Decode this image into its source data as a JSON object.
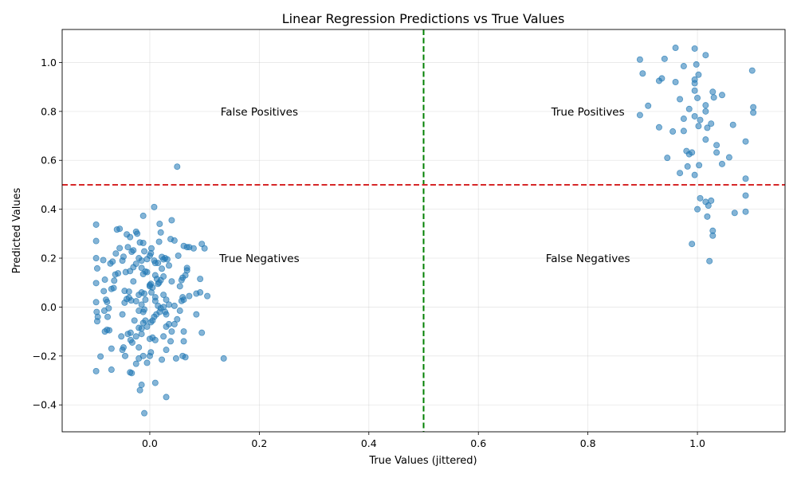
{
  "chart_data": {
    "type": "scatter",
    "title": "Linear Regression Predictions vs True Values",
    "xlabel": "True Values (jittered)",
    "ylabel": "Predicted Values",
    "xlim": [
      -0.16,
      1.16
    ],
    "ylim": [
      -0.51,
      1.135
    ],
    "xticks": [
      0.0,
      0.2,
      0.4,
      0.6,
      0.8,
      1.0
    ],
    "xtick_labels": [
      "0.0",
      "0.2",
      "0.4",
      "0.6",
      "0.8",
      "1.0"
    ],
    "yticks": [
      -0.4,
      -0.2,
      0.0,
      0.2,
      0.4,
      0.6,
      0.8,
      1.0
    ],
    "ytick_labels": [
      "−0.4",
      "−0.2",
      "0.0",
      "0.2",
      "0.4",
      "0.6",
      "0.8",
      "1.0"
    ],
    "grid": true,
    "point_color": "#1f77b4",
    "threshold_lines": [
      {
        "orientation": "vertical",
        "value": 0.5,
        "color": "#008000",
        "style": "dashed"
      },
      {
        "orientation": "horizontal",
        "value": 0.5,
        "color": "#d62728",
        "style": "dashed"
      }
    ],
    "annotations": [
      {
        "text": "False Positives",
        "x": 0.2,
        "y": 0.8
      },
      {
        "text": "True Positives",
        "x": 0.8,
        "y": 0.8
      },
      {
        "text": "True Negatives",
        "x": 0.2,
        "y": 0.2
      },
      {
        "text": "False Negatives",
        "x": 0.8,
        "y": 0.2
      }
    ],
    "points": [
      [
        -0.098,
        0.337
      ],
      [
        -0.098,
        0.27
      ],
      [
        -0.098,
        0.2
      ],
      [
        -0.096,
        0.158
      ],
      [
        -0.098,
        0.098
      ],
      [
        -0.098,
        0.02
      ],
      [
        -0.097,
        -0.02
      ],
      [
        -0.095,
        -0.04
      ],
      [
        -0.096,
        -0.058
      ],
      [
        -0.098,
        -0.262
      ],
      [
        -0.09,
        -0.202
      ],
      [
        -0.085,
        0.192
      ],
      [
        -0.082,
        0.112
      ],
      [
        -0.084,
        0.065
      ],
      [
        -0.08,
        0.03
      ],
      [
        -0.078,
        0.021
      ],
      [
        -0.083,
        -0.015
      ],
      [
        -0.075,
        -0.005
      ],
      [
        -0.077,
        -0.04
      ],
      [
        -0.082,
        -0.1
      ],
      [
        -0.078,
        -0.093
      ],
      [
        -0.074,
        -0.095
      ],
      [
        -0.07,
        -0.17
      ],
      [
        -0.07,
        -0.256
      ],
      [
        -0.07,
        0.074
      ],
      [
        -0.066,
        0.078
      ],
      [
        -0.072,
        0.178
      ],
      [
        -0.068,
        0.186
      ],
      [
        -0.06,
        0.317
      ],
      [
        -0.055,
        0.32
      ],
      [
        -0.058,
        0.138
      ],
      [
        -0.063,
        0.133
      ],
      [
        -0.065,
        0.108
      ],
      [
        -0.062,
        0.219
      ],
      [
        -0.055,
        0.241
      ],
      [
        -0.05,
        0.19
      ],
      [
        -0.048,
        0.206
      ],
      [
        -0.042,
        0.297
      ],
      [
        -0.036,
        0.286
      ],
      [
        -0.04,
        0.245
      ],
      [
        -0.033,
        0.226
      ],
      [
        -0.03,
        0.232
      ],
      [
        -0.044,
        0.143
      ],
      [
        -0.036,
        0.147
      ],
      [
        -0.03,
        0.163
      ],
      [
        -0.025,
        0.177
      ],
      [
        -0.03,
        0.105
      ],
      [
        -0.046,
        0.066
      ],
      [
        -0.038,
        0.063
      ],
      [
        -0.042,
        0.033
      ],
      [
        -0.046,
        0.018
      ],
      [
        -0.038,
        0.038
      ],
      [
        -0.034,
        0.027
      ],
      [
        -0.025,
        0.024
      ],
      [
        -0.05,
        -0.03
      ],
      [
        -0.04,
        -0.11
      ],
      [
        -0.035,
        -0.105
      ],
      [
        -0.028,
        -0.055
      ],
      [
        -0.035,
        -0.135
      ],
      [
        -0.032,
        -0.145
      ],
      [
        -0.052,
        -0.12
      ],
      [
        -0.048,
        -0.165
      ],
      [
        -0.05,
        -0.175
      ],
      [
        -0.045,
        -0.2
      ],
      [
        -0.036,
        -0.267
      ],
      [
        -0.033,
        -0.27
      ],
      [
        -0.025,
        -0.232
      ],
      [
        -0.02,
        -0.21
      ],
      [
        -0.018,
        -0.34
      ],
      [
        -0.015,
        -0.318
      ],
      [
        -0.01,
        -0.434
      ],
      [
        -0.012,
        0.373
      ],
      [
        -0.025,
        0.308
      ],
      [
        -0.023,
        0.3
      ],
      [
        -0.018,
        0.264
      ],
      [
        -0.012,
        0.262
      ],
      [
        -0.01,
        0.228
      ],
      [
        -0.005,
        0.196
      ],
      [
        -0.015,
        0.19
      ],
      [
        -0.02,
        0.2
      ],
      [
        -0.008,
        0.145
      ],
      [
        -0.012,
        0.135
      ],
      [
        -0.015,
        0.16
      ],
      [
        -0.005,
        0.143
      ],
      [
        0.0,
        0.085
      ],
      [
        0.002,
        0.095
      ],
      [
        -0.01,
        0.055
      ],
      [
        -0.015,
        0.06
      ],
      [
        -0.02,
        0.05
      ],
      [
        -0.008,
        0.03
      ],
      [
        -0.015,
        0.01
      ],
      [
        -0.02,
        -0.015
      ],
      [
        -0.012,
        -0.02
      ],
      [
        -0.01,
        -0.01
      ],
      [
        -0.02,
        -0.085
      ],
      [
        -0.015,
        -0.088
      ],
      [
        -0.012,
        -0.065
      ],
      [
        -0.008,
        -0.055
      ],
      [
        -0.005,
        -0.08
      ],
      [
        -0.025,
        -0.12
      ],
      [
        -0.015,
        -0.11
      ],
      [
        -0.02,
        -0.165
      ],
      [
        -0.012,
        -0.2
      ],
      [
        -0.005,
        -0.228
      ],
      [
        0.0,
        -0.2
      ],
      [
        0.002,
        -0.185
      ],
      [
        0.0,
        -0.13
      ],
      [
        0.005,
        -0.125
      ],
      [
        0.01,
        -0.135
      ],
      [
        0.01,
        -0.31
      ],
      [
        0.008,
        0.409
      ],
      [
        0.003,
        0.24
      ],
      [
        0.002,
        0.22
      ],
      [
        0.0,
        0.21
      ],
      [
        0.008,
        0.19
      ],
      [
        0.01,
        0.18
      ],
      [
        0.015,
        0.18
      ],
      [
        0.01,
        0.13
      ],
      [
        0.013,
        0.115
      ],
      [
        0.017,
        0.1
      ],
      [
        0.02,
        0.11
      ],
      [
        0.025,
        0.125
      ],
      [
        0.015,
        0.095
      ],
      [
        0.005,
        0.08
      ],
      [
        0.003,
        0.06
      ],
      [
        0.0,
        0.09
      ],
      [
        0.01,
        0.04
      ],
      [
        0.01,
        0.025
      ],
      [
        0.015,
        0.005
      ],
      [
        0.02,
        -0.005
      ],
      [
        0.025,
        0.0
      ],
      [
        0.018,
        -0.02
      ],
      [
        0.012,
        -0.03
      ],
      [
        0.008,
        -0.04
      ],
      [
        0.005,
        -0.055
      ],
      [
        0.002,
        -0.062
      ],
      [
        0.018,
        0.34
      ],
      [
        0.02,
        0.305
      ],
      [
        0.017,
        0.267
      ],
      [
        0.022,
        0.205
      ],
      [
        0.025,
        0.195
      ],
      [
        0.028,
        0.2
      ],
      [
        0.032,
        0.195
      ],
      [
        0.035,
        0.17
      ],
      [
        0.022,
        0.157
      ],
      [
        0.025,
        0.05
      ],
      [
        0.03,
        0.03
      ],
      [
        0.035,
        0.01
      ],
      [
        0.028,
        -0.02
      ],
      [
        0.03,
        -0.03
      ],
      [
        0.035,
        -0.07
      ],
      [
        0.03,
        -0.08
      ],
      [
        0.025,
        -0.12
      ],
      [
        0.03,
        -0.175
      ],
      [
        0.022,
        -0.215
      ],
      [
        0.03,
        -0.368
      ],
      [
        0.05,
        0.574
      ],
      [
        0.04,
        0.355
      ],
      [
        0.038,
        0.278
      ],
      [
        0.045,
        0.272
      ],
      [
        0.052,
        0.21
      ],
      [
        0.04,
        0.105
      ],
      [
        0.045,
        0.005
      ],
      [
        0.04,
        -0.1
      ],
      [
        0.038,
        -0.14
      ],
      [
        0.045,
        -0.07
      ],
      [
        0.05,
        -0.05
      ],
      [
        0.048,
        -0.21
      ],
      [
        0.055,
        -0.015
      ],
      [
        0.062,
        0.25
      ],
      [
        0.068,
        0.245
      ],
      [
        0.072,
        0.245
      ],
      [
        0.08,
        0.24
      ],
      [
        0.068,
        0.16
      ],
      [
        0.068,
        0.15
      ],
      [
        0.065,
        0.13
      ],
      [
        0.06,
        0.12
      ],
      [
        0.058,
        0.11
      ],
      [
        0.055,
        0.085
      ],
      [
        0.06,
        0.04
      ],
      [
        0.058,
        0.025
      ],
      [
        0.062,
        0.03
      ],
      [
        0.072,
        0.045
      ],
      [
        0.062,
        -0.1
      ],
      [
        0.062,
        -0.14
      ],
      [
        0.06,
        -0.2
      ],
      [
        0.065,
        -0.205
      ],
      [
        0.085,
        0.055
      ],
      [
        0.092,
        0.06
      ],
      [
        0.085,
        -0.03
      ],
      [
        0.092,
        0.115
      ],
      [
        0.1,
        0.24
      ],
      [
        0.095,
        0.258
      ],
      [
        0.105,
        0.045
      ],
      [
        0.095,
        -0.105
      ],
      [
        0.135,
        -0.21
      ],
      [
        0.895,
        1.012
      ],
      [
        0.9,
        0.955
      ],
      [
        0.94,
        1.015
      ],
      [
        0.96,
        1.06
      ],
      [
        0.995,
        1.057
      ],
      [
        1.015,
        1.03
      ],
      [
        0.998,
        0.992
      ],
      [
        0.975,
        0.985
      ],
      [
        1.1,
        0.967
      ],
      [
        0.93,
        0.925
      ],
      [
        0.935,
        0.935
      ],
      [
        0.96,
        0.92
      ],
      [
        0.995,
        0.93
      ],
      [
        0.995,
        0.915
      ],
      [
        1.002,
        0.95
      ],
      [
        0.995,
        0.885
      ],
      [
        1.028,
        0.88
      ],
      [
        1.03,
        0.857
      ],
      [
        1.045,
        0.867
      ],
      [
        0.968,
        0.85
      ],
      [
        1.0,
        0.855
      ],
      [
        1.015,
        0.825
      ],
      [
        1.102,
        0.817
      ],
      [
        0.91,
        0.823
      ],
      [
        0.895,
        0.785
      ],
      [
        0.985,
        0.81
      ],
      [
        1.015,
        0.8
      ],
      [
        0.995,
        0.78
      ],
      [
        1.005,
        0.765
      ],
      [
        0.975,
        0.77
      ],
      [
        1.102,
        0.795
      ],
      [
        0.93,
        0.735
      ],
      [
        0.955,
        0.718
      ],
      [
        0.975,
        0.72
      ],
      [
        1.002,
        0.74
      ],
      [
        1.018,
        0.733
      ],
      [
        1.025,
        0.75
      ],
      [
        1.065,
        0.745
      ],
      [
        1.015,
        0.685
      ],
      [
        1.088,
        0.677
      ],
      [
        1.035,
        0.662
      ],
      [
        0.98,
        0.638
      ],
      [
        0.99,
        0.632
      ],
      [
        0.985,
        0.625
      ],
      [
        1.035,
        0.632
      ],
      [
        1.058,
        0.612
      ],
      [
        0.945,
        0.61
      ],
      [
        0.982,
        0.575
      ],
      [
        1.003,
        0.58
      ],
      [
        1.045,
        0.585
      ],
      [
        0.968,
        0.548
      ],
      [
        0.995,
        0.54
      ],
      [
        1.088,
        0.525
      ],
      [
        1.088,
        0.456
      ],
      [
        1.005,
        0.445
      ],
      [
        1.015,
        0.43
      ],
      [
        1.025,
        0.435
      ],
      [
        1.02,
        0.415
      ],
      [
        1.0,
        0.4
      ],
      [
        1.018,
        0.37
      ],
      [
        1.068,
        0.385
      ],
      [
        1.088,
        0.39
      ],
      [
        1.028,
        0.312
      ],
      [
        1.028,
        0.292
      ],
      [
        0.99,
        0.258
      ],
      [
        1.022,
        0.188
      ]
    ]
  }
}
